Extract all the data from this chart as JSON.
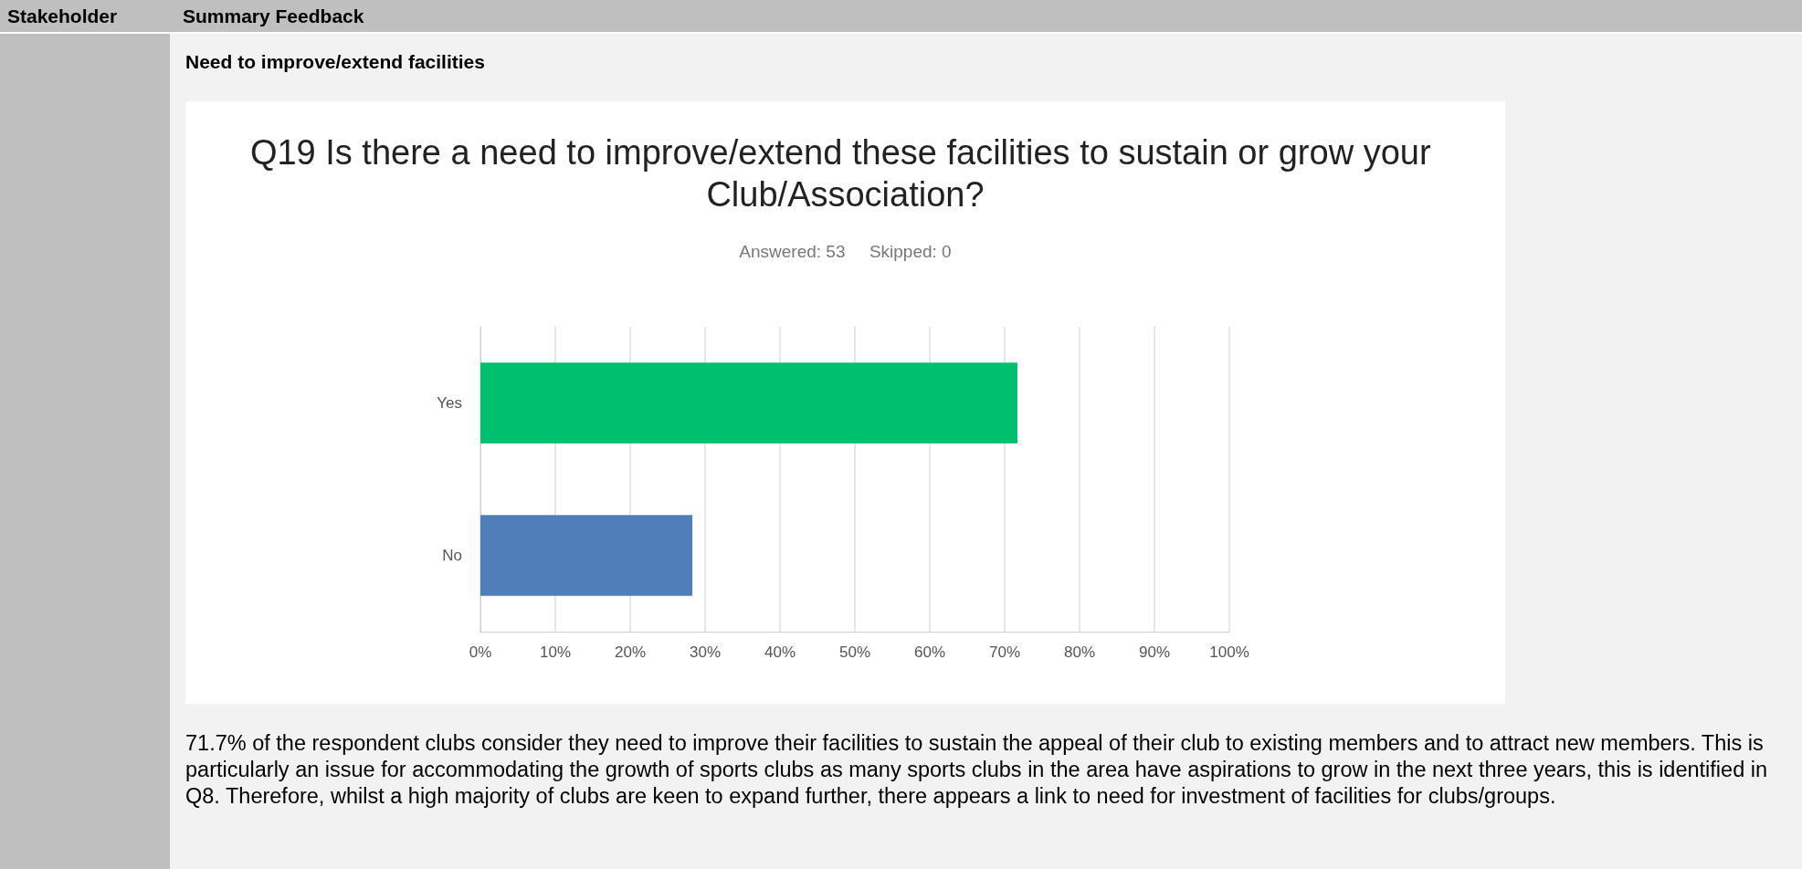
{
  "chart_data": {
    "type": "bar",
    "orientation": "horizontal",
    "title": "Q19 Is there a need to improve/extend these facilities to sustain or grow your Club/Association?",
    "subtitle": "Answered: 53     Skipped: 0",
    "categories": [
      "Yes",
      "No"
    ],
    "values": [
      71.7,
      28.3
    ],
    "colors": [
      "#00bf6f",
      "#4f7eba"
    ],
    "xlim": [
      0,
      100
    ],
    "xticks": [
      {
        "value": 0,
        "label": "0%"
      },
      {
        "value": 10,
        "label": "10%"
      },
      {
        "value": 20,
        "label": "20%"
      },
      {
        "value": 30,
        "label": "30%"
      },
      {
        "value": 40,
        "label": "40%"
      },
      {
        "value": 50,
        "label": "50%"
      },
      {
        "value": 60,
        "label": "60%"
      },
      {
        "value": 70,
        "label": "70%"
      },
      {
        "value": 80,
        "label": "80%"
      },
      {
        "value": 90,
        "label": "90%"
      },
      {
        "value": 100,
        "label": "100%"
      }
    ],
    "grid": "x",
    "annotations": [
      "Stakeholder",
      "Summary Feedback",
      "Need to improve/extend facilities",
      "71.7% of the respondent clubs consider they need to improve their facilities to sustain the appeal of their club to existing members and to attract new members. This is particularly an issue for accommodating the growth of sports clubs as many sports clubs in the area have aspirations to grow in the next three years, this is identified in Q8. Therefore, whilst a high majority of clubs are keen to expand further, there appears a link to need for investment of facilities for clubs/groups."
    ]
  }
}
